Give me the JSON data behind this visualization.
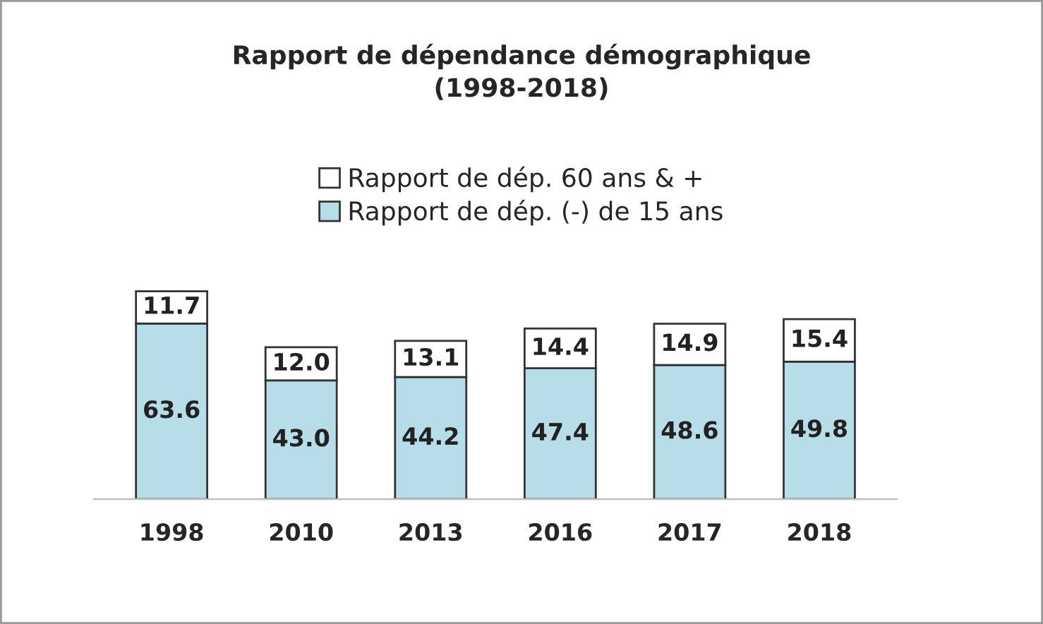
{
  "chart_data": {
    "type": "bar",
    "title": "Rapport de dépendance démographique\n(1998-2018)",
    "stacked": true,
    "legend": "top",
    "grid": false,
    "categories": [
      "1998",
      "2010",
      "2013",
      "2016",
      "2017",
      "2018"
    ],
    "series": [
      {
        "name": "Rapport de dép. (-) de 15 ans",
        "color": "#b7dee8",
        "values": [
          63.6,
          43.0,
          44.2,
          47.4,
          48.6,
          49.8
        ],
        "value_labels": [
          "63.6",
          "43.0",
          "44.2",
          "47.4",
          "48.6",
          "49.8"
        ]
      },
      {
        "name": "Rapport de dép. 60 ans & +",
        "color": "#ffffff",
        "values": [
          11.7,
          12.0,
          13.1,
          14.4,
          14.9,
          15.4
        ],
        "value_labels": [
          "11.7",
          "12.0",
          "13.1",
          "14.4",
          "14.9",
          "15.4"
        ]
      }
    ]
  }
}
